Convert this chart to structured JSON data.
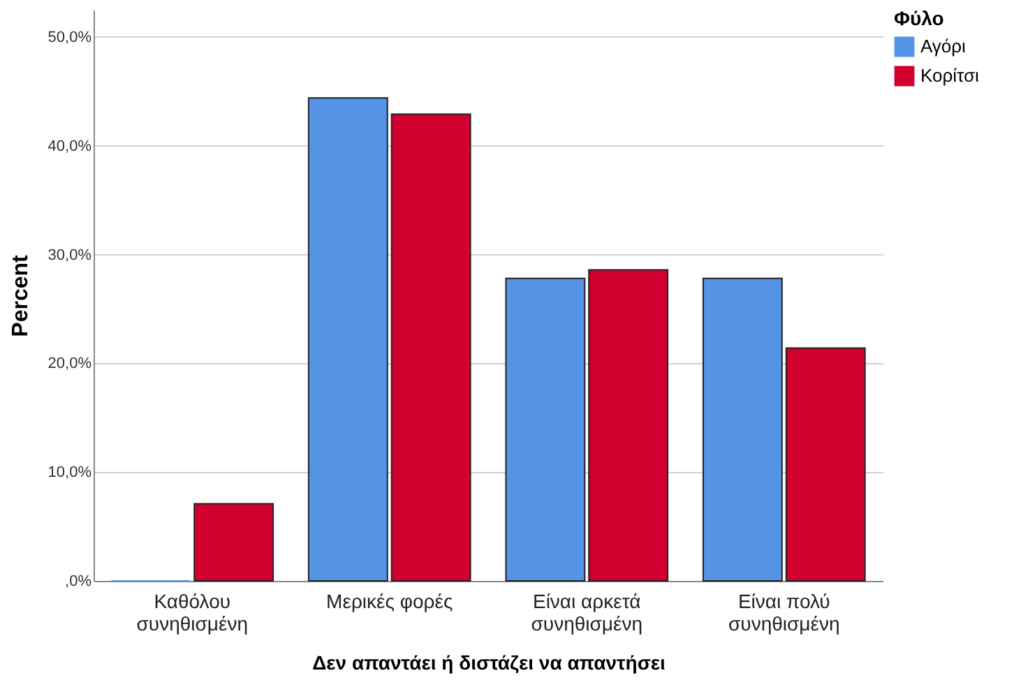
{
  "chart_data": {
    "type": "bar",
    "xlabel": "Δεν απαντάει ή διστάζει να απαντήσει",
    "ylabel": "Percent",
    "legend_title": "Φύλο",
    "categories": [
      "Καθόλου συνηθισμένη",
      "Μερικές φορές",
      "Είναι αρκετά συνηθισμένη",
      "Είναι πολύ συνηθισμένη"
    ],
    "series": [
      {
        "name": "Αγόρι",
        "color": "#5593e5",
        "values": [
          0,
          44.4,
          27.8,
          27.8
        ]
      },
      {
        "name": "Κορίτσι",
        "color": "#d2002e",
        "values": [
          7.1,
          42.9,
          28.6,
          21.4
        ]
      }
    ],
    "ylim": [
      0,
      52.5
    ],
    "yticks": [
      {
        "value": 0,
        "label": ",0%"
      },
      {
        "value": 10,
        "label": "10,0%"
      },
      {
        "value": 20,
        "label": "20,0%"
      },
      {
        "value": 30,
        "label": "30,0%"
      },
      {
        "value": 40,
        "label": "40,0%"
      },
      {
        "value": 50,
        "label": "50,0%"
      }
    ],
    "grid": "y",
    "legend": "top right"
  }
}
